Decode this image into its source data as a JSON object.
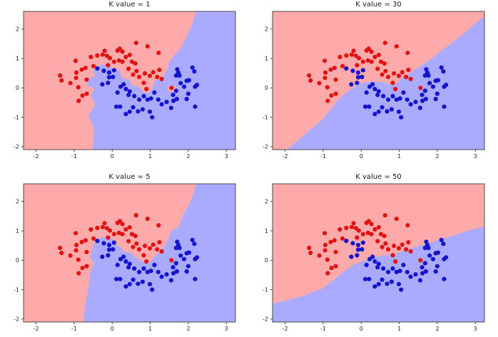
{
  "figure": {
    "background": "#ffffff",
    "colors": {
      "region_red": "#ffaaaa",
      "region_blue": "#aaaaff",
      "point_red": "#e01313",
      "point_blue": "#1414cf",
      "spine": "#3a3a3a",
      "tick_text": "#262626"
    }
  },
  "chart_data": {
    "type": "scatter",
    "description": "KNN decision boundaries on two-moons dataset for four K values",
    "classes": [
      {
        "name": "class-red",
        "color": "#e01313"
      },
      {
        "name": "class-blue",
        "color": "#1414cf"
      }
    ],
    "shared_scatter": {
      "red_points": [
        [
          -1.37,
          0.42
        ],
        [
          -1.33,
          0.25
        ],
        [
          -1.1,
          0.16
        ],
        [
          -0.96,
          0.92
        ],
        [
          -0.95,
          0.34
        ],
        [
          -0.94,
          0.52
        ],
        [
          -0.89,
          0.02
        ],
        [
          -0.88,
          -0.44
        ],
        [
          -0.8,
          0.62
        ],
        [
          -0.78,
          -0.26
        ],
        [
          -0.7,
          0.68
        ],
        [
          -0.67,
          -0.2
        ],
        [
          -0.67,
          0.28
        ],
        [
          -0.56,
          1.05
        ],
        [
          -0.49,
          0.74
        ],
        [
          -0.39,
          1.1
        ],
        [
          -0.25,
          1.13
        ],
        [
          -0.2,
          1.26
        ],
        [
          -0.14,
          1.09
        ],
        [
          -0.11,
          0.77
        ],
        [
          -0.06,
          1.01
        ],
        [
          0.05,
          0.89
        ],
        [
          0.14,
          1.27
        ],
        [
          0.18,
          0.93
        ],
        [
          0.2,
          1.33
        ],
        [
          0.27,
          1.23
        ],
        [
          0.27,
          0.89
        ],
        [
          0.36,
          1.05
        ],
        [
          0.43,
          0.65
        ],
        [
          0.46,
          1.12
        ],
        [
          0.52,
          0.89
        ],
        [
          0.55,
          0.45
        ],
        [
          0.61,
          0.83
        ],
        [
          0.63,
          1.53
        ],
        [
          0.64,
          0.57
        ],
        [
          0.71,
          0.37
        ],
        [
          0.83,
          0.17
        ],
        [
          0.86,
          0.49
        ],
        [
          0.9,
          -0.04
        ],
        [
          0.93,
          1.41
        ],
        [
          0.99,
          0.41
        ],
        [
          1.08,
          0.53
        ],
        [
          1.18,
          0.37
        ],
        [
          1.22,
          1.19
        ],
        [
          1.24,
          0.61
        ],
        [
          1.3,
          0.3
        ],
        [
          1.56,
          0.0
        ]
      ],
      "blue_points": [
        [
          -0.39,
          0.66
        ],
        [
          -0.26,
          0.12
        ],
        [
          -0.22,
          0.58
        ],
        [
          -0.11,
          0.17
        ],
        [
          -0.08,
          0.52
        ],
        [
          -0.08,
          0.36
        ],
        [
          0.02,
          0.37
        ],
        [
          0.05,
          0.6
        ],
        [
          0.11,
          -0.64
        ],
        [
          0.14,
          -0.16
        ],
        [
          0.21,
          -0.64
        ],
        [
          0.22,
          0.04
        ],
        [
          0.3,
          0.12
        ],
        [
          0.36,
          -0.04
        ],
        [
          0.36,
          -0.89
        ],
        [
          0.43,
          -0.24
        ],
        [
          0.46,
          -0.12
        ],
        [
          0.46,
          -0.81
        ],
        [
          0.55,
          -0.66
        ],
        [
          0.58,
          -0.28
        ],
        [
          0.68,
          -0.8
        ],
        [
          0.71,
          -0.4
        ],
        [
          0.8,
          -0.73
        ],
        [
          0.83,
          -0.28
        ],
        [
          0.93,
          -0.4
        ],
        [
          0.99,
          -0.81
        ],
        [
          1.02,
          -0.36
        ],
        [
          1.05,
          -1.0
        ],
        [
          1.11,
          -0.16
        ],
        [
          1.21,
          -0.4
        ],
        [
          1.3,
          -0.56
        ],
        [
          1.43,
          -0.48
        ],
        [
          1.55,
          -0.68
        ],
        [
          1.6,
          -0.24
        ],
        [
          1.61,
          -0.44
        ],
        [
          1.68,
          -0.1
        ],
        [
          1.68,
          0.42
        ],
        [
          1.7,
          -0.38
        ],
        [
          1.71,
          0.63
        ],
        [
          1.74,
          0.52
        ],
        [
          1.77,
          0.42
        ],
        [
          1.8,
          0.16
        ],
        [
          1.89,
          0.04
        ],
        [
          1.96,
          0.24
        ],
        [
          1.96,
          -0.38
        ],
        [
          2.0,
          -0.2
        ],
        [
          2.02,
          0.26
        ],
        [
          2.11,
          0.69
        ],
        [
          2.16,
          0.56
        ],
        [
          2.18,
          0.04
        ],
        [
          2.18,
          -0.64
        ],
        [
          2.23,
          0.1
        ]
      ]
    },
    "subplots": [
      {
        "title": "K value = 1",
        "k": 1,
        "position": "top-left",
        "xlim": [
          -2.33,
          3.24
        ],
        "ylim": [
          -2.1,
          2.6
        ],
        "xticks": [
          -2,
          -1,
          0,
          1,
          2,
          3
        ],
        "yticks": [
          -2,
          -1,
          0,
          1,
          2
        ],
        "blue_region": [
          [
            -0.52,
            -2.1
          ],
          [
            -0.48,
            -1.4
          ],
          [
            -0.62,
            -0.95
          ],
          [
            -0.45,
            -0.55
          ],
          [
            -0.58,
            -0.25
          ],
          [
            -0.45,
            -0.05
          ],
          [
            -0.65,
            0.08
          ],
          [
            -0.62,
            0.3
          ],
          [
            -0.45,
            0.42
          ],
          [
            -0.5,
            0.6
          ],
          [
            -0.3,
            0.8
          ],
          [
            -0.05,
            0.78
          ],
          [
            0.05,
            0.55
          ],
          [
            0.18,
            0.62
          ],
          [
            0.28,
            0.32
          ],
          [
            0.45,
            0.28
          ],
          [
            0.52,
            0.08
          ],
          [
            0.72,
            0.02
          ],
          [
            0.8,
            -0.12
          ],
          [
            0.95,
            -0.18
          ],
          [
            1.05,
            -0.02
          ],
          [
            1.12,
            0.25
          ],
          [
            1.3,
            0.33
          ],
          [
            1.42,
            0.55
          ],
          [
            1.5,
            0.9
          ],
          [
            1.63,
            1.1
          ],
          [
            1.8,
            1.35
          ],
          [
            1.95,
            1.75
          ],
          [
            2.1,
            2.15
          ],
          [
            2.2,
            2.6
          ],
          [
            3.24,
            2.6
          ],
          [
            3.24,
            -2.1
          ]
        ],
        "red_islands": [
          [
            [
              1.44,
              -0.02
            ],
            [
              1.52,
              0.09
            ],
            [
              1.66,
              0.06
            ],
            [
              1.72,
              -0.05
            ],
            [
              1.62,
              -0.15
            ],
            [
              1.5,
              -0.13
            ]
          ]
        ]
      },
      {
        "title": "K value = 30",
        "k": 30,
        "position": "top-right",
        "xlim": [
          -2.33,
          3.24
        ],
        "ylim": [
          -2.1,
          2.6
        ],
        "xticks": [
          -2,
          -1,
          0,
          1,
          2,
          3
        ],
        "yticks": [
          -2,
          -1,
          0,
          1,
          2
        ],
        "blue_region": [
          [
            -1.95,
            -2.1
          ],
          [
            -1.42,
            -1.52
          ],
          [
            -1.0,
            -1.05
          ],
          [
            -0.62,
            -0.42
          ],
          [
            -0.3,
            -0.06
          ],
          [
            0.0,
            0.16
          ],
          [
            0.3,
            0.22
          ],
          [
            0.6,
            0.18
          ],
          [
            0.85,
            0.08
          ],
          [
            1.1,
            0.35
          ],
          [
            1.45,
            0.65
          ],
          [
            1.8,
            0.95
          ],
          [
            2.3,
            1.45
          ],
          [
            2.8,
            1.95
          ],
          [
            3.1,
            2.3
          ],
          [
            3.24,
            2.42
          ],
          [
            3.24,
            -2.1
          ]
        ],
        "red_islands": []
      },
      {
        "title": "K value = 5",
        "k": 5,
        "position": "bottom-left",
        "xlim": [
          -2.33,
          3.24
        ],
        "ylim": [
          -2.1,
          2.6
        ],
        "xticks": [
          -2,
          -1,
          0,
          1,
          2,
          3
        ],
        "yticks": [
          -2,
          -1,
          0,
          1,
          2
        ],
        "blue_region": [
          [
            -0.75,
            -2.1
          ],
          [
            -0.7,
            -1.45
          ],
          [
            -0.62,
            -0.9
          ],
          [
            -0.58,
            -0.45
          ],
          [
            -0.48,
            -0.1
          ],
          [
            -0.6,
            0.1
          ],
          [
            -0.52,
            0.4
          ],
          [
            -0.45,
            0.65
          ],
          [
            -0.25,
            0.8
          ],
          [
            0.0,
            0.75
          ],
          [
            0.08,
            0.52
          ],
          [
            0.2,
            0.48
          ],
          [
            0.3,
            0.3
          ],
          [
            0.5,
            0.25
          ],
          [
            0.62,
            0.1
          ],
          [
            0.8,
            -0.05
          ],
          [
            1.0,
            -0.06
          ],
          [
            1.12,
            0.12
          ],
          [
            1.22,
            0.3
          ],
          [
            1.38,
            0.48
          ],
          [
            1.48,
            0.72
          ],
          [
            1.55,
            1.0
          ],
          [
            1.75,
            1.15
          ],
          [
            1.85,
            1.5
          ],
          [
            2.0,
            1.85
          ],
          [
            2.12,
            2.2
          ],
          [
            2.2,
            2.6
          ],
          [
            3.24,
            2.6
          ],
          [
            3.24,
            -2.1
          ]
        ],
        "red_islands": []
      },
      {
        "title": "K value = 50",
        "k": 50,
        "position": "bottom-right",
        "xlim": [
          -2.33,
          3.24
        ],
        "ylim": [
          -2.1,
          2.6
        ],
        "xticks": [
          -2,
          -1,
          0,
          1,
          2,
          3
        ],
        "yticks": [
          -2,
          -1,
          0,
          1,
          2
        ],
        "blue_region": [
          [
            -2.33,
            -1.48
          ],
          [
            -1.6,
            -1.25
          ],
          [
            -1.0,
            -0.95
          ],
          [
            -0.5,
            -0.42
          ],
          [
            -0.2,
            -0.15
          ],
          [
            0.1,
            0.0
          ],
          [
            0.5,
            0.15
          ],
          [
            0.9,
            0.22
          ],
          [
            1.3,
            0.4
          ],
          [
            1.8,
            0.6
          ],
          [
            2.3,
            0.8
          ],
          [
            2.8,
            1.0
          ],
          [
            3.24,
            1.15
          ],
          [
            3.24,
            -2.1
          ],
          [
            -2.33,
            -2.1
          ]
        ],
        "red_islands": []
      }
    ]
  }
}
